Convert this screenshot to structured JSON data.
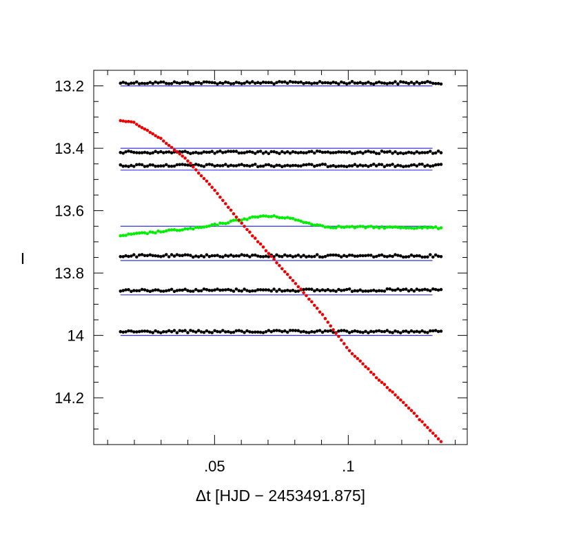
{
  "chart_data": {
    "type": "scatter",
    "xlabel": "Δt [HJD − 2453491.875]",
    "ylabel": "I",
    "x_range": [
      0.0048,
      0.1445
    ],
    "y_range": [
      14.35,
      13.15
    ],
    "y_inverted": true,
    "x_tick_labels": [
      {
        "value": 0.05,
        "label": ".05"
      },
      {
        "value": 0.1,
        "label": ".1"
      }
    ],
    "y_tick_labels": [
      {
        "value": 13.2,
        "label": "13.2"
      },
      {
        "value": 13.4,
        "label": "13.4"
      },
      {
        "value": 13.6,
        "label": "13.6"
      },
      {
        "value": 13.8,
        "label": "13.8"
      },
      {
        "value": 14.0,
        "label": "14"
      },
      {
        "value": 14.2,
        "label": "14.2"
      }
    ],
    "x_minor_step": 0.01,
    "y_minor_step": 0.05,
    "x_start": 0.0148,
    "x_end": 0.1347,
    "n_points": 120,
    "reference_lines": {
      "color": "#3333dd",
      "x_start": 0.0148,
      "x_end": 0.1315,
      "levels": [
        13.2,
        13.4,
        13.47,
        13.65,
        13.76,
        13.87,
        14.0
      ]
    },
    "series": [
      {
        "color": "#000000",
        "trend": [
          [
            0.0148,
            13.19
          ],
          [
            0.1347,
            13.19
          ]
        ],
        "scatter": 0.004
      },
      {
        "color": "#000000",
        "trend": [
          [
            0.0148,
            13.413
          ],
          [
            0.1347,
            13.413
          ]
        ],
        "scatter": 0.004
      },
      {
        "color": "#000000",
        "trend": [
          [
            0.0148,
            13.455
          ],
          [
            0.1347,
            13.455
          ]
        ],
        "scatter": 0.004
      },
      {
        "color": "#00ee00",
        "trend": [
          [
            0.0148,
            13.68
          ],
          [
            0.03,
            13.667
          ],
          [
            0.045,
            13.655
          ],
          [
            0.058,
            13.632
          ],
          [
            0.068,
            13.617
          ],
          [
            0.077,
            13.622
          ],
          [
            0.085,
            13.64
          ],
          [
            0.092,
            13.652
          ],
          [
            0.1347,
            13.655
          ]
        ],
        "scatter": 0.003
      },
      {
        "color": "#000000",
        "trend": [
          [
            0.0148,
            13.745
          ],
          [
            0.1347,
            13.745
          ]
        ],
        "scatter": 0.004
      },
      {
        "color": "#000000",
        "trend": [
          [
            0.0148,
            13.855
          ],
          [
            0.1347,
            13.855
          ]
        ],
        "scatter": 0.004
      },
      {
        "color": "#000000",
        "trend": [
          [
            0.0148,
            13.988
          ],
          [
            0.1347,
            13.988
          ]
        ],
        "scatter": 0.004
      },
      {
        "color": "#ee0000",
        "trend": [
          [
            0.0148,
            13.31
          ],
          [
            0.02,
            13.318
          ],
          [
            0.03,
            13.37
          ],
          [
            0.04,
            13.44
          ],
          [
            0.05,
            13.535
          ],
          [
            0.06,
            13.64
          ],
          [
            0.07,
            13.735
          ],
          [
            0.08,
            13.83
          ],
          [
            0.09,
            13.93
          ],
          [
            0.1,
            14.045
          ],
          [
            0.11,
            14.13
          ],
          [
            0.12,
            14.21
          ],
          [
            0.1347,
            14.34
          ]
        ],
        "scatter": 0.0015
      }
    ]
  }
}
